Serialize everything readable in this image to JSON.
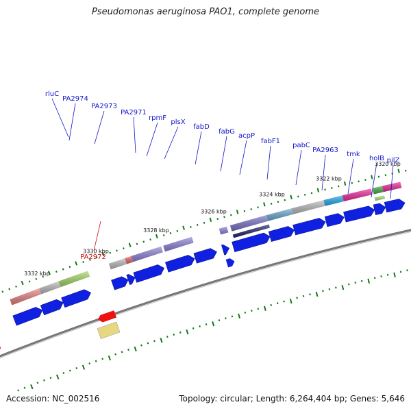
{
  "title": "Pseudomonas aeruginosa PAO1, complete genome",
  "footer": {
    "accession_label": "Accession:",
    "accession": "NC_002516",
    "topology_label": "Topology:",
    "topology": "circular",
    "length_label": "Length:",
    "length": "6,264,404 bp",
    "genes_label": "Genes:",
    "genes": "5,646"
  },
  "ticks": [
    "3332 kbp",
    "3330 kbp",
    "3328 kbp",
    "3326 kbp",
    "3324 kbp",
    "3322 kbp",
    "3320 kbp"
  ],
  "genes_forward_labels": [
    "rluC",
    "PA2974",
    "PA2973",
    "PA2971",
    "rpmF",
    "plsX",
    "fabD",
    "fabG",
    "acpP",
    "fabF1",
    "pabC",
    "PA2963",
    "tmk",
    "holB",
    "pilZ"
  ],
  "genes_reverse_labels": [
    "PA2972"
  ],
  "colors": {
    "forward_label": "#1111cc",
    "reverse_label": "#cc1111",
    "cds_arrow": "#1020e0",
    "backbone": "#777777",
    "tick": "#117711"
  }
}
